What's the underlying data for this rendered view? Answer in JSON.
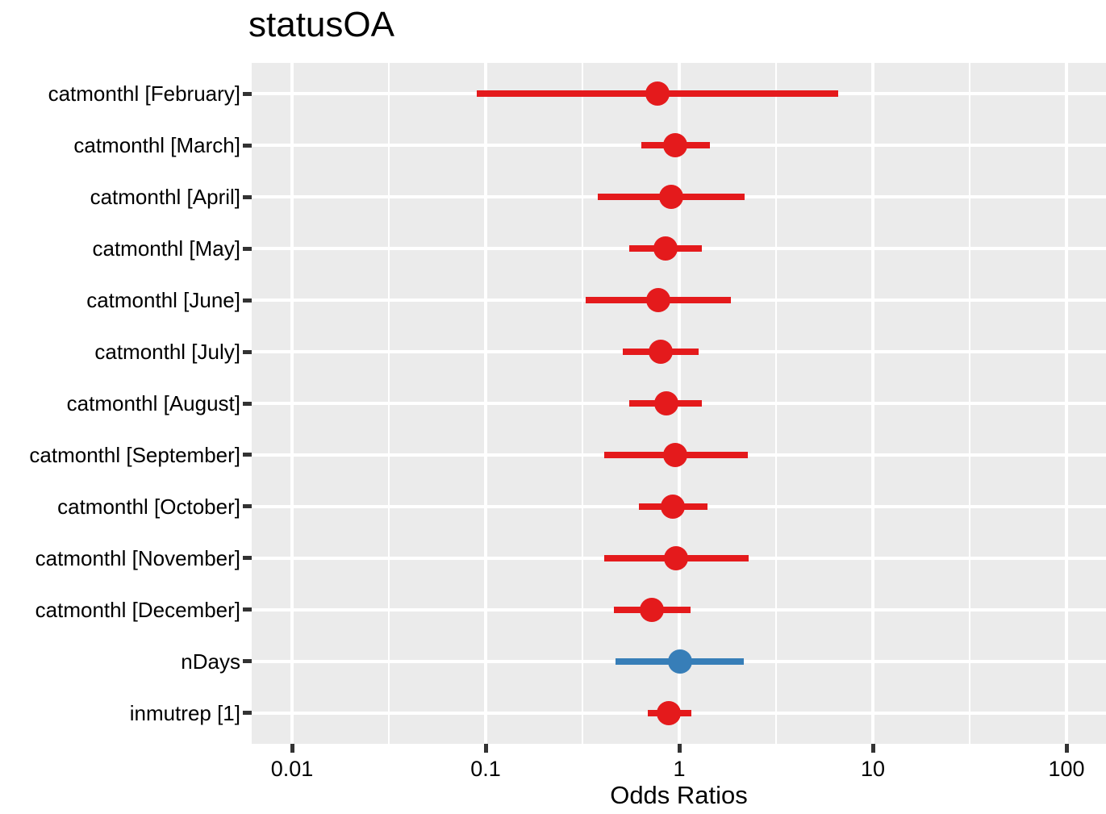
{
  "figure": {
    "title": "statusOA",
    "x_axis_label": "Odds Ratios"
  },
  "chart_data": {
    "type": "scatter",
    "variant": "forest-plot-odds-ratios",
    "title": "statusOA",
    "xlabel": "Odds Ratios",
    "ylabel": "",
    "x_scale": "log10",
    "xlim": [
      0.0062,
      160
    ],
    "x_ticks": [
      0.01,
      0.1,
      1,
      10,
      100
    ],
    "x_tick_labels": [
      "0.01",
      "0.1",
      "1",
      "10",
      "100"
    ],
    "grid": true,
    "legend": false,
    "panel_background": "#EBEBEB",
    "gridline_color": "#FFFFFF",
    "tick_mark_color": "#333333",
    "text_color": "#000000",
    "colors": {
      "or_below_1": "#E41A1C",
      "or_above_1": "#377EB8"
    },
    "rows": [
      {
        "label": "catmonthl [February]",
        "estimate": 0.77,
        "ci_low": 0.09,
        "ci_high": 6.6,
        "color": "#E41A1C"
      },
      {
        "label": "catmonthl [March]",
        "estimate": 0.95,
        "ci_low": 0.64,
        "ci_high": 1.44,
        "color": "#E41A1C"
      },
      {
        "label": "catmonthl [April]",
        "estimate": 0.91,
        "ci_low": 0.38,
        "ci_high": 2.18,
        "color": "#E41A1C"
      },
      {
        "label": "catmonthl [May]",
        "estimate": 0.85,
        "ci_low": 0.55,
        "ci_high": 1.31,
        "color": "#E41A1C"
      },
      {
        "label": "catmonthl [June]",
        "estimate": 0.78,
        "ci_low": 0.33,
        "ci_high": 1.84,
        "color": "#E41A1C"
      },
      {
        "label": "catmonthl [July]",
        "estimate": 0.8,
        "ci_low": 0.51,
        "ci_high": 1.26,
        "color": "#E41A1C"
      },
      {
        "label": "catmonthl [August]",
        "estimate": 0.86,
        "ci_low": 0.55,
        "ci_high": 1.31,
        "color": "#E41A1C"
      },
      {
        "label": "catmonthl [September]",
        "estimate": 0.95,
        "ci_low": 0.41,
        "ci_high": 2.25,
        "color": "#E41A1C"
      },
      {
        "label": "catmonthl [October]",
        "estimate": 0.93,
        "ci_low": 0.62,
        "ci_high": 1.4,
        "color": "#E41A1C"
      },
      {
        "label": "catmonthl [November]",
        "estimate": 0.96,
        "ci_low": 0.41,
        "ci_high": 2.29,
        "color": "#E41A1C"
      },
      {
        "label": "catmonthl [December]",
        "estimate": 0.72,
        "ci_low": 0.46,
        "ci_high": 1.14,
        "color": "#E41A1C"
      },
      {
        "label": "nDays",
        "estimate": 1.01,
        "ci_low": 0.47,
        "ci_high": 2.16,
        "color": "#377EB8"
      },
      {
        "label": "inmutrep [1]",
        "estimate": 0.88,
        "ci_low": 0.69,
        "ci_high": 1.15,
        "color": "#E41A1C"
      }
    ]
  }
}
